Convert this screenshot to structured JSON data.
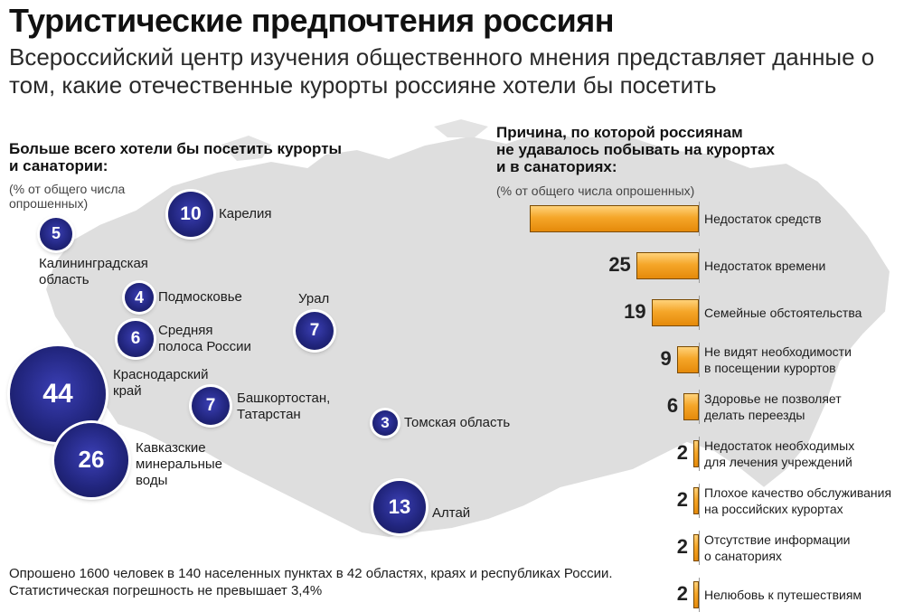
{
  "title": "Туристические предпочтения россиян",
  "subtitle": "Всероссийский центр изучения общественного мнения представляет данные о том, какие отечественные курорты россияне хотели бы посетить",
  "left_section": {
    "heading_line1": "Больше всего хотели бы посетить курорты",
    "heading_line2": "и санатории:",
    "note_line1": "(% от общего числа",
    "note_line2": "опрошенных)"
  },
  "right_section": {
    "heading_line1": "Причина, по которой россиянам",
    "heading_line2": "не удавалось побывать на курортах",
    "heading_line3": "и в санаториях:",
    "note": "(% от общего числа опрошенных)"
  },
  "footer": {
    "line1": "Опрошено 1600 человек в 140 населенных пунктах в 42 областях, краях и республиках России.",
    "line2": "Статистическая погрешность не превышает 3,4%"
  },
  "colors": {
    "bubble": "#22267f",
    "bar": "#f5a629",
    "map": "#dcdcdc"
  },
  "chart_data": [
    {
      "type": "bubble",
      "title": "Больше всего хотели бы посетить курорты и санатории:",
      "unit": "% от общего числа опрошенных",
      "points": [
        {
          "label_lines": [
            "Карелия"
          ],
          "value": 10
        },
        {
          "label_lines": [
            "Калининградская",
            "область"
          ],
          "value": 5
        },
        {
          "label_lines": [
            "Подмосковье"
          ],
          "value": 4
        },
        {
          "label_lines": [
            "Урал"
          ],
          "value": 7
        },
        {
          "label_lines": [
            "Средняя",
            "полоса России"
          ],
          "value": 6
        },
        {
          "label_lines": [
            "Краснодарский",
            "край"
          ],
          "value": 44
        },
        {
          "label_lines": [
            "Башкортостан,",
            "Татарстан"
          ],
          "value": 7
        },
        {
          "label_lines": [
            "Томская область"
          ],
          "value": 3
        },
        {
          "label_lines": [
            "Кавказские",
            "минеральные",
            "воды"
          ],
          "value": 26
        },
        {
          "label_lines": [
            "Алтай"
          ],
          "value": 13
        }
      ]
    },
    {
      "type": "bar",
      "orientation": "horizontal",
      "title": "Причина, по которой россиянам не удавалось побывать на курортах и в санаториях:",
      "unit": "% от общего числа опрошенных",
      "categories": [
        [
          "Недостаток средств"
        ],
        [
          "Недостаток времени"
        ],
        [
          "Семейные обстоятельства"
        ],
        [
          "Не видят необходимости",
          "в посещении курортов"
        ],
        [
          "Здоровье не позволяет",
          "делать переезды"
        ],
        [
          "Недостаток необходимых",
          "для лечения учреждений"
        ],
        [
          "Плохое качество обслуживания",
          "на российских курортах"
        ],
        [
          "Отсутствие информации",
          "о санаториях"
        ],
        [
          "Нелюбовь к путешествиям"
        ]
      ],
      "values": [
        null,
        25,
        19,
        9,
        6,
        2,
        2,
        2,
        2
      ],
      "value_labels": [
        "",
        "25",
        "19",
        "9",
        "6",
        "2",
        "2",
        "2",
        "2"
      ],
      "bar_fraction": [
        1.0,
        0.37,
        0.28,
        0.13,
        0.09,
        0.03,
        0.03,
        0.03,
        0.03
      ]
    }
  ]
}
